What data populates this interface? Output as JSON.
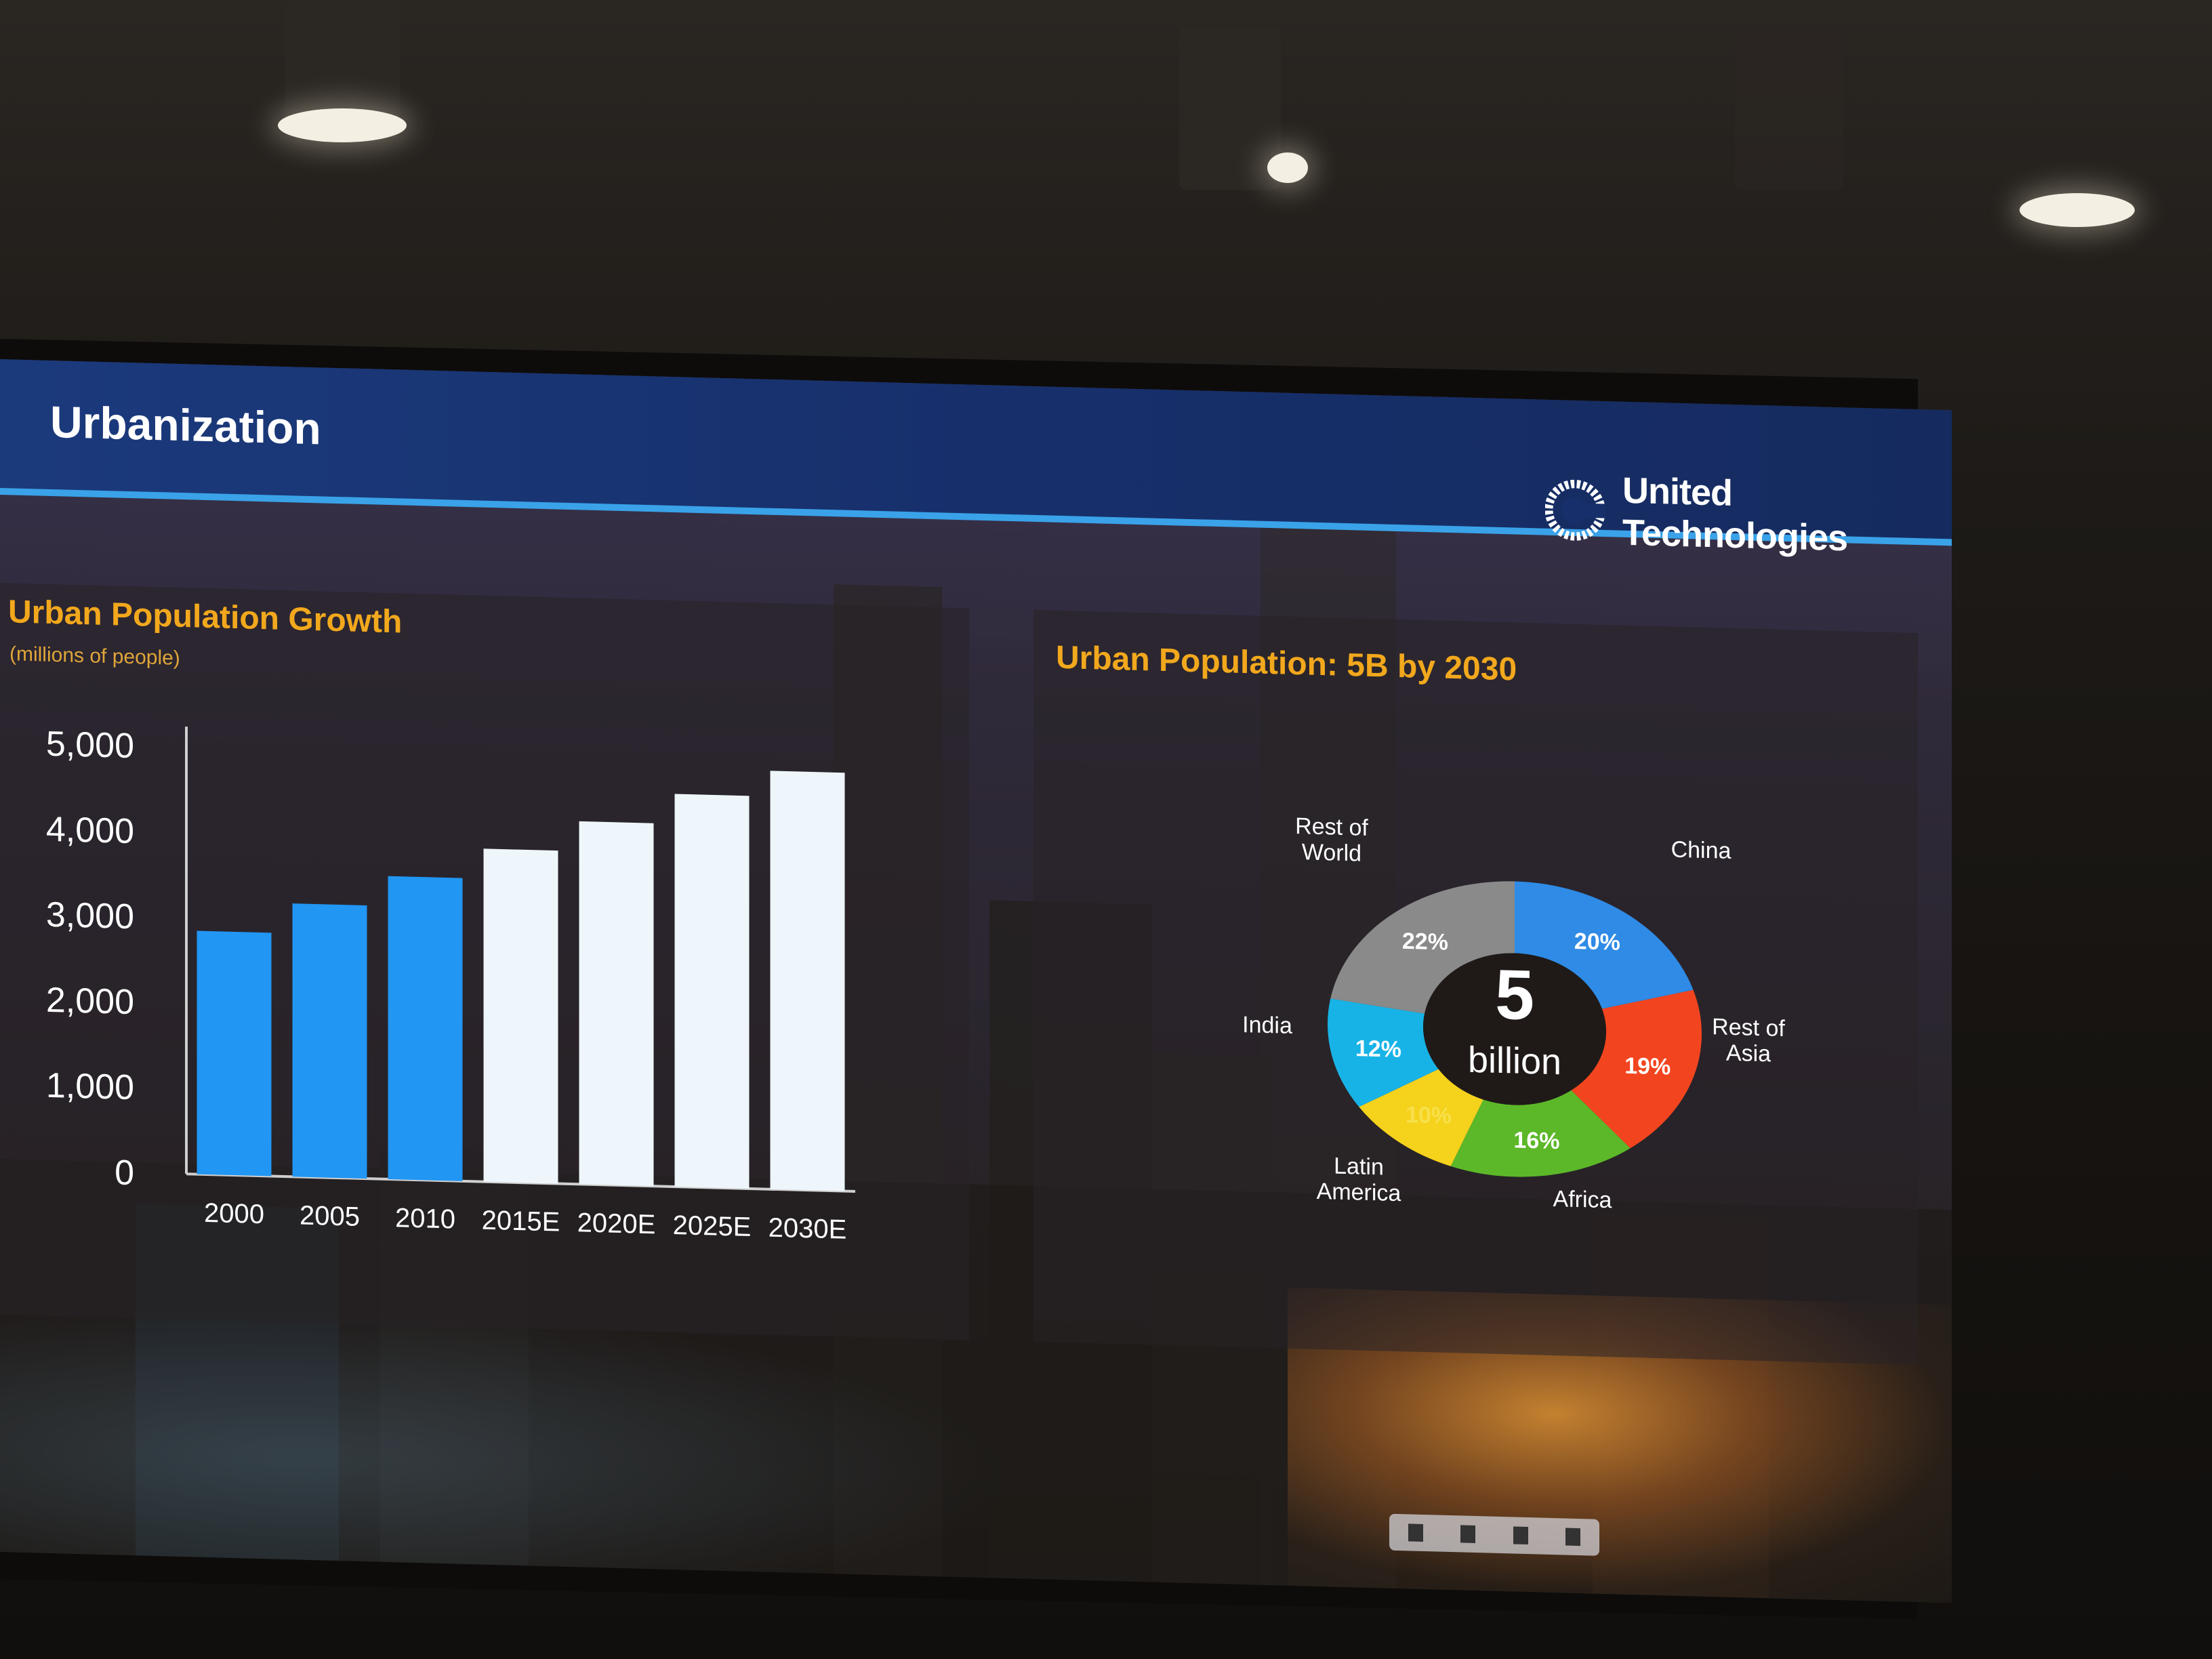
{
  "slide": {
    "title": "Urbanization",
    "brand_name": "United Technologies",
    "brand_logo_icon": "utc-logo-icon",
    "colors": {
      "header": "#1b3a7c",
      "header_rule": "#3aa2e8",
      "chart_title": "#f2a81d",
      "bar_actual": "#2196f3",
      "bar_estimate": "#eef6fb"
    }
  },
  "chart_data": [
    {
      "type": "bar",
      "title": "Urban Population Growth",
      "subtitle": "(millions of people)",
      "categories": [
        "2000",
        "2005",
        "2010",
        "2015E",
        "2020E",
        "2025E",
        "2030E"
      ],
      "values": [
        2850,
        3200,
        3550,
        3900,
        4250,
        4600,
        4900
      ],
      "estimate": [
        false,
        false,
        false,
        true,
        true,
        true,
        true
      ],
      "yticks": [
        "0",
        "1,000",
        "2,000",
        "3,000",
        "4,000",
        "5,000"
      ],
      "ylim": [
        0,
        5000
      ],
      "grid": false
    },
    {
      "type": "pie",
      "title": "Urban Population: 5B by 2030",
      "center_value": "5",
      "center_unit": "billion",
      "slices": [
        {
          "label": "China",
          "value": 20,
          "pct_text": "20%",
          "color": "#2f8be6"
        },
        {
          "label": "Rest of Asia",
          "value": 19,
          "pct_text": "19%",
          "color": "#f2451f"
        },
        {
          "label": "Africa",
          "value": 16,
          "pct_text": "16%",
          "color": "#5cb829"
        },
        {
          "label": "Latin America",
          "value": 10,
          "pct_text": "10%",
          "color": "#f5d21c"
        },
        {
          "label": "India",
          "value": 12,
          "pct_text": "12%",
          "color": "#18b3e6"
        },
        {
          "label": "Rest of World",
          "value": 22,
          "pct_text": "22%",
          "color": "#8a8a8a"
        }
      ]
    }
  ]
}
